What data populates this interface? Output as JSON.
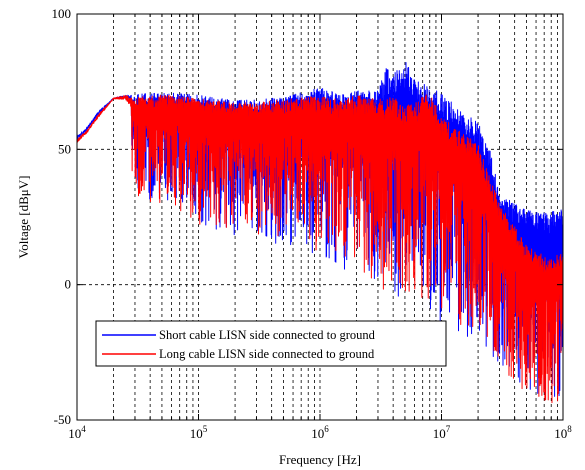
{
  "chart_data": {
    "type": "line",
    "title": "",
    "xlabel": "Frequency [Hz]",
    "ylabel": "Voltage [dBμV]",
    "xscale": "log",
    "xlim": [
      10000,
      100000000
    ],
    "ylim": [
      -50,
      100
    ],
    "grid": true,
    "legend_position": "lower-left",
    "x_ticks": [
      {
        "base": "10",
        "exp": "4"
      },
      {
        "base": "10",
        "exp": "5"
      },
      {
        "base": "10",
        "exp": "6"
      },
      {
        "base": "10",
        "exp": "7"
      },
      {
        "base": "10",
        "exp": "8"
      }
    ],
    "y_ticks": [
      "-50",
      "0",
      "50",
      "100"
    ],
    "series": [
      {
        "name": "Short cable LISN side connected to ground",
        "color": "#0000ff",
        "envelope": {
          "x": [
            10000,
            12000,
            15000,
            20000,
            25000,
            30000,
            40000,
            60000,
            100000,
            200000,
            400000,
            700000,
            1000000,
            1500000,
            2000000,
            3000000,
            3500000,
            4000000,
            5000000,
            6000000,
            8000000,
            10000000,
            13000000,
            20000000,
            25000000,
            30000000,
            40000000,
            50000000,
            60000000,
            80000000,
            100000000
          ],
          "upper": [
            55,
            58,
            64,
            69,
            70,
            70,
            71,
            71,
            70,
            68,
            69,
            71,
            73,
            70,
            72,
            72,
            80,
            78,
            83,
            76,
            73,
            71,
            66,
            60,
            50,
            34,
            30,
            28,
            27,
            27,
            28
          ],
          "lower": [
            45,
            50,
            56,
            67,
            62,
            33,
            30,
            30,
            22,
            18,
            15,
            12,
            10,
            6,
            2,
            0,
            -10,
            -5,
            -15,
            -6,
            -10,
            -15,
            -20,
            -20,
            -25,
            -30,
            -35,
            -38,
            -40,
            -42,
            -44
          ]
        }
      },
      {
        "name": "Long cable LISN side connected to ground",
        "color": "#ff0000",
        "envelope": {
          "x": [
            10000,
            12000,
            15000,
            20000,
            25000,
            30000,
            40000,
            60000,
            100000,
            200000,
            400000,
            700000,
            1000000,
            1500000,
            2000000,
            3000000,
            3500000,
            4000000,
            5000000,
            6000000,
            8000000,
            10000000,
            13000000,
            20000000,
            25000000,
            30000000,
            40000000,
            50000000,
            60000000,
            80000000,
            100000000
          ],
          "upper": [
            54,
            57,
            63,
            69,
            70,
            69,
            70,
            70,
            69,
            67,
            68,
            69,
            70,
            68,
            70,
            69,
            68,
            70,
            66,
            68,
            71,
            62,
            58,
            52,
            40,
            30,
            22,
            15,
            12,
            10,
            12
          ],
          "lower": [
            44,
            49,
            55,
            66,
            60,
            33,
            30,
            30,
            22,
            20,
            18,
            14,
            12,
            8,
            4,
            0,
            -5,
            -3,
            -8,
            -5,
            -8,
            -10,
            -15,
            -18,
            -24,
            -30,
            -38,
            -42,
            -44,
            -46,
            -48
          ]
        }
      }
    ]
  }
}
